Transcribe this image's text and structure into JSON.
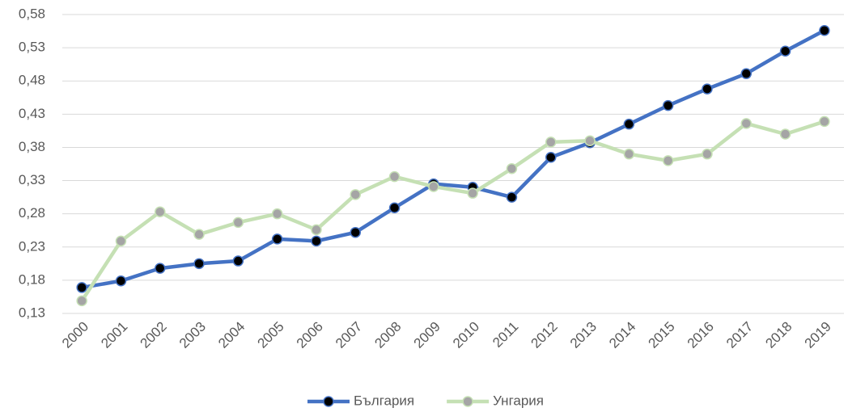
{
  "chart_data": {
    "type": "line",
    "categories": [
      "2000",
      "2001",
      "2002",
      "2003",
      "2004",
      "2005",
      "2006",
      "2007",
      "2008",
      "2009",
      "2010",
      "2011",
      "2012",
      "2013",
      "2014",
      "2015",
      "2016",
      "2017",
      "2018",
      "2019"
    ],
    "series": [
      {
        "name": "България",
        "color": "#4472c4",
        "marker_color": "#000000",
        "values": [
          0.169,
          0.179,
          0.198,
          0.205,
          0.209,
          0.242,
          0.239,
          0.252,
          0.289,
          0.325,
          0.32,
          0.305,
          0.365,
          0.387,
          0.415,
          0.443,
          0.468,
          0.491,
          0.525,
          0.556
        ]
      },
      {
        "name": "Унгария",
        "color": "#c5e0b4",
        "marker_color": "#a5a5a5",
        "values": [
          0.149,
          0.239,
          0.283,
          0.249,
          0.267,
          0.28,
          0.256,
          0.309,
          0.336,
          0.321,
          0.311,
          0.348,
          0.388,
          0.39,
          0.37,
          0.36,
          0.37,
          0.416,
          0.4,
          0.419
        ]
      }
    ],
    "ylim": [
      0.13,
      0.58
    ],
    "yticks": [
      {
        "value": 0.13,
        "label": "0,13"
      },
      {
        "value": 0.18,
        "label": "0,18"
      },
      {
        "value": 0.23,
        "label": "0,23"
      },
      {
        "value": 0.28,
        "label": "0,28"
      },
      {
        "value": 0.33,
        "label": "0,33"
      },
      {
        "value": 0.38,
        "label": "0,38"
      },
      {
        "value": 0.43,
        "label": "0,43"
      },
      {
        "value": 0.48,
        "label": "0,48"
      },
      {
        "value": 0.53,
        "label": "0,53"
      },
      {
        "value": 0.58,
        "label": "0,58"
      }
    ],
    "grid": true,
    "legend": "bottom"
  }
}
